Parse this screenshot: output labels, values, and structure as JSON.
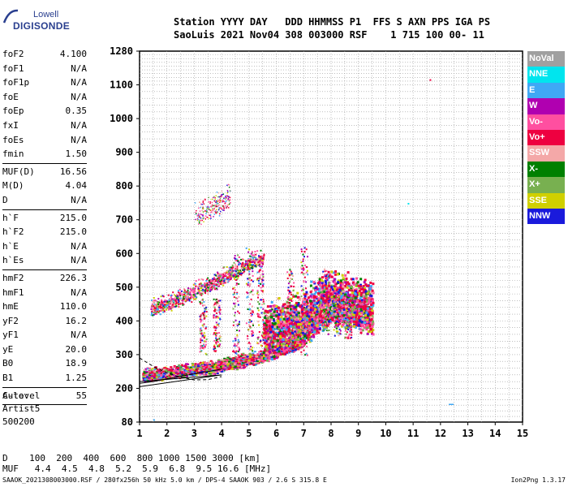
{
  "logo": {
    "line1": "Lowell",
    "line2": "DIGISONDE"
  },
  "header": {
    "line1": "Station YYYY DAY   DDD HHMMSS P1  FFS S AXN PPS IGA PS",
    "line2": "SaoLuis 2021 Nov04 308 003000 RSF    1 715 100 00- 11"
  },
  "params": [
    {
      "name": "foF2",
      "value": "4.100"
    },
    {
      "name": "foF1",
      "value": "N/A"
    },
    {
      "name": "foF1p",
      "value": "N/A"
    },
    {
      "name": "foE",
      "value": "N/A"
    },
    {
      "name": "foEp",
      "value": "0.35"
    },
    {
      "name": "fxI",
      "value": "N/A"
    },
    {
      "name": "foEs",
      "value": "N/A"
    },
    {
      "name": "fmin",
      "value": "1.50",
      "sep": true
    },
    {
      "name": "MUF(D)",
      "value": "16.56"
    },
    {
      "name": "M(D)",
      "value": "4.04"
    },
    {
      "name": "D",
      "value": "N/A",
      "sep": true
    },
    {
      "name": "h`F",
      "value": "215.0"
    },
    {
      "name": "h`F2",
      "value": "215.0"
    },
    {
      "name": "h`E",
      "value": "N/A"
    },
    {
      "name": "h`Es",
      "value": "N/A",
      "sep": true
    },
    {
      "name": "hmF2",
      "value": "226.3"
    },
    {
      "name": "hmF1",
      "value": "N/A"
    },
    {
      "name": "hmE",
      "value": "110.0"
    },
    {
      "name": "yF2",
      "value": "16.2"
    },
    {
      "name": "yF1",
      "value": "N/A"
    },
    {
      "name": "yE",
      "value": "20.0"
    },
    {
      "name": "B0",
      "value": "18.9"
    },
    {
      "name": "B1",
      "value": "1.25",
      "sep": true
    },
    {
      "name": "C-level",
      "value": "55",
      "sep": true
    }
  ],
  "auto": {
    "label": "Auto:",
    "name": "Artist5",
    "number": "500200"
  },
  "legend": [
    {
      "label": "NoVal",
      "color": "#a0a0a0"
    },
    {
      "label": "NNE",
      "color": "#00e5ee"
    },
    {
      "label": "E",
      "color": "#3fa8f5"
    },
    {
      "label": "W",
      "color": "#b000b0"
    },
    {
      "label": "Vo-",
      "color": "#ff4fa0"
    },
    {
      "label": "Vo+",
      "color": "#ee0040"
    },
    {
      "label": "SSW",
      "color": "#f4a8a8"
    },
    {
      "label": "X-",
      "color": "#008000"
    },
    {
      "label": "X+",
      "color": "#78b050"
    },
    {
      "label": "SSE",
      "color": "#d0d000"
    },
    {
      "label": "NNW",
      "color": "#1a1adc"
    }
  ],
  "bottom": {
    "d_line": "D    100  200  400  600  800 1000 1500 3000 [km]",
    "muf_line": "MUF   4.4  4.5  4.8  5.2  5.9  6.8  9.5 16.6 [MHz]"
  },
  "footer": {
    "text": "SAAOK_2021308003000.RSF / 280fx256h 50 kHz 5.0 km / DPS-4 SAAOK 903 / 2.6 S 315.8 E",
    "version": "Ion2Png 1.3.17"
  },
  "chart_data": {
    "type": "scatter",
    "title": "",
    "xlabel": "",
    "ylabel": "",
    "xlim": [
      1,
      15
    ],
    "ylim": [
      80,
      1280
    ],
    "x_ticks": [
      "1",
      "2",
      "3",
      "4",
      "5",
      "6",
      "7",
      "8",
      "9",
      "10",
      "11",
      "12",
      "13",
      "14",
      "15"
    ],
    "y_ticks": [
      {
        "value": 80,
        "label": "80"
      },
      {
        "value": 200,
        "label": "200"
      },
      {
        "value": 300,
        "label": "300"
      },
      {
        "value": 400,
        "label": "400"
      },
      {
        "value": 500,
        "label": "500"
      },
      {
        "value": 600,
        "label": "600"
      },
      {
        "value": 700,
        "label": "700"
      },
      {
        "value": 800,
        "label": "800"
      },
      {
        "value": 900,
        "label": "900"
      },
      {
        "value": 1000,
        "label": "1000"
      },
      {
        "value": 1100,
        "label": "1100"
      },
      {
        "value": 1280,
        "label": "1280"
      }
    ],
    "grid": "dotted",
    "traces": [
      {
        "name": "O-trace F",
        "color_class": "mixed",
        "points": [
          [
            1.1,
            230
          ],
          [
            1.5,
            235
          ],
          [
            2.0,
            240
          ],
          [
            2.5,
            245
          ],
          [
            3.0,
            250
          ],
          [
            3.5,
            255
          ],
          [
            4.0,
            262
          ],
          [
            4.5,
            270
          ],
          [
            5.0,
            280
          ],
          [
            5.5,
            290
          ],
          [
            6.0,
            305
          ],
          [
            6.5,
            320
          ],
          [
            7.0,
            335
          ]
        ]
      },
      {
        "name": "Spread F",
        "color_class": "mixed",
        "points": [
          [
            5.5,
            330
          ],
          [
            6.0,
            345
          ],
          [
            6.5,
            360
          ],
          [
            7.0,
            380
          ],
          [
            7.5,
            410
          ],
          [
            8.0,
            440
          ],
          [
            8.5,
            430
          ],
          [
            9.0,
            415
          ],
          [
            9.5,
            405
          ]
        ]
      },
      {
        "name": "Second hop",
        "color_class": "mixed",
        "points": [
          [
            1.4,
            430
          ],
          [
            2.0,
            445
          ],
          [
            2.5,
            460
          ],
          [
            3.0,
            480
          ],
          [
            3.5,
            500
          ],
          [
            4.0,
            520
          ],
          [
            4.5,
            540
          ],
          [
            5.0,
            565
          ],
          [
            5.5,
            580
          ]
        ]
      },
      {
        "name": "Third hop",
        "color_class": "mixed",
        "points": [
          [
            3.0,
            700
          ],
          [
            3.5,
            720
          ],
          [
            4.0,
            740
          ],
          [
            4.3,
            760
          ]
        ]
      }
    ],
    "profile": {
      "points": [
        [
          1.0,
          215
        ],
        [
          1.5,
          220
        ],
        [
          2.0,
          228
        ],
        [
          2.5,
          236
        ],
        [
          3.0,
          243
        ],
        [
          3.5,
          250
        ],
        [
          4.0,
          257
        ]
      ]
    },
    "model_trace": {
      "points": [
        [
          1.0,
          290
        ],
        [
          1.5,
          265
        ],
        [
          2.0,
          246
        ],
        [
          2.5,
          233
        ],
        [
          3.0,
          225
        ],
        [
          3.5,
          226
        ],
        [
          4.0,
          235
        ]
      ]
    }
  }
}
